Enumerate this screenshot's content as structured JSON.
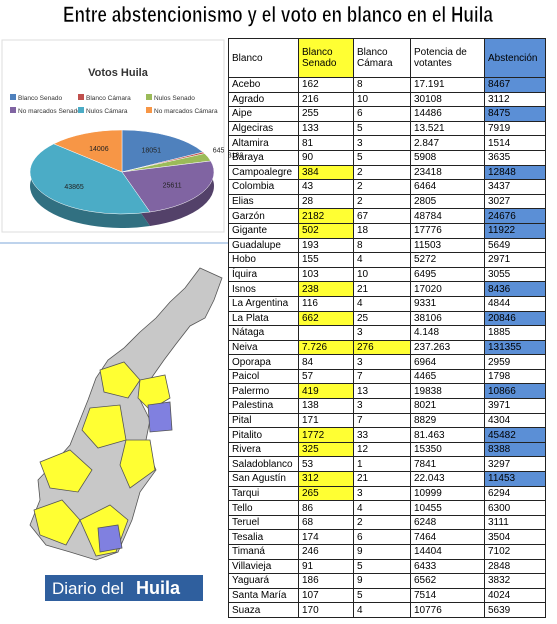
{
  "title": "Entre abstencionismo y el voto en blanco en el Huila",
  "chart_data": {
    "type": "pie",
    "title": "Votos Huila",
    "series": [
      {
        "name": "Blanco Senado",
        "color": "#4f81bd",
        "values": [
          18051
        ]
      },
      {
        "name": "Blanco Cámara",
        "color": "#c0504d",
        "values": [
          645
        ]
      },
      {
        "name": "Nulos Senado",
        "color": "#9bbb59",
        "values": [
          3182
        ]
      },
      {
        "name": "No marcados Senado",
        "color": "#8064a2",
        "values": [
          25611
        ]
      },
      {
        "name": "Nulos Cámara",
        "color": "#4bacc6",
        "values": [
          43865
        ]
      },
      {
        "name": "No marcados Cámara",
        "color": "#f79646",
        "values": [
          14006
        ]
      }
    ]
  },
  "table": {
    "header": [
      "Blanco",
      "Blanco Senado",
      "Blanco Cámara",
      "Potencia de votantes",
      "Abstención"
    ],
    "highlight_colors": {
      "1": "#ffff33",
      "2": "#ffff33",
      "4": "#5b8fd6"
    },
    "header_highlight": [
      1,
      4
    ],
    "rows": [
      {
        "cells": [
          "Acebo",
          "162",
          "8",
          "17.191",
          "8467"
        ],
        "highlight": [
          4
        ]
      },
      {
        "cells": [
          "Agrado",
          "216",
          "10",
          "30108",
          "3112"
        ],
        "highlight": []
      },
      {
        "cells": [
          "Aipe",
          "255",
          "6",
          "14486",
          "8475"
        ],
        "highlight": [
          4
        ]
      },
      {
        "cells": [
          "Algeciras",
          "133",
          "5",
          "13.521",
          "7919"
        ],
        "highlight": []
      },
      {
        "cells": [
          "Altamira",
          "81",
          "3",
          "2.847",
          "1514"
        ],
        "highlight": []
      },
      {
        "cells": [
          "Baraya",
          "90",
          "5",
          "5908",
          "3635"
        ],
        "highlight": []
      },
      {
        "cells": [
          "Campoalegre",
          "384",
          "2",
          "23418",
          "12848"
        ],
        "highlight": [
          1,
          4
        ]
      },
      {
        "cells": [
          "Colombia",
          "43",
          "2",
          "6464",
          "3437"
        ],
        "highlight": []
      },
      {
        "cells": [
          "Elias",
          "28",
          "2",
          "2805",
          "3027"
        ],
        "highlight": []
      },
      {
        "cells": [
          "Garzón",
          "2182",
          "67",
          "48784",
          "24676"
        ],
        "highlight": [
          1,
          4
        ]
      },
      {
        "cells": [
          "Gigante",
          "502",
          "18",
          "17776",
          "11922"
        ],
        "highlight": [
          1,
          4
        ]
      },
      {
        "cells": [
          "Guadalupe",
          "193",
          "8",
          "11503",
          "5649"
        ],
        "highlight": []
      },
      {
        "cells": [
          "Hobo",
          "155",
          "4",
          "5272",
          "2971"
        ],
        "highlight": []
      },
      {
        "cells": [
          "Íquira",
          "103",
          "10",
          "6495",
          "3055"
        ],
        "highlight": []
      },
      {
        "cells": [
          "Isnos",
          "238",
          "21",
          "17020",
          "8436"
        ],
        "highlight": [
          1,
          4
        ]
      },
      {
        "cells": [
          "La Argentina",
          "116",
          "4",
          "9331",
          "4844"
        ],
        "highlight": []
      },
      {
        "cells": [
          "La Plata",
          "662",
          "25",
          "38106",
          "20846"
        ],
        "highlight": [
          1,
          4
        ]
      },
      {
        "cells": [
          "Nátaga",
          null,
          "3",
          "4.148",
          "1885"
        ],
        "highlight": []
      },
      {
        "cells": [
          "Neiva",
          "7.726",
          "276",
          "237.263",
          "131355"
        ],
        "highlight": [
          1,
          2,
          4
        ]
      },
      {
        "cells": [
          "Oporapa",
          "84",
          "3",
          "6964",
          "2959"
        ],
        "highlight": []
      },
      {
        "cells": [
          "Paicol",
          "57",
          "7",
          "4465",
          "1798"
        ],
        "highlight": []
      },
      {
        "cells": [
          "Palermo",
          "419",
          "13",
          "19838",
          "10866"
        ],
        "highlight": [
          1,
          4
        ]
      },
      {
        "cells": [
          "Palestina",
          "138",
          "3",
          "8021",
          "3971"
        ],
        "highlight": []
      },
      {
        "cells": [
          "Pital",
          "171",
          "7",
          "8829",
          "4304"
        ],
        "highlight": []
      },
      {
        "cells": [
          "Pitalito",
          "1772",
          "33",
          "81.463",
          "45482"
        ],
        "highlight": [
          1,
          4
        ]
      },
      {
        "cells": [
          "Rivera",
          "325",
          "12",
          "15350",
          "8388"
        ],
        "highlight": [
          1,
          4
        ]
      },
      {
        "cells": [
          "Saladoblanco",
          "53",
          "1",
          "7841",
          "3297"
        ],
        "highlight": []
      },
      {
        "cells": [
          "San Agustín",
          "312",
          "21",
          "22.043",
          "11453"
        ],
        "highlight": [
          1,
          4
        ]
      },
      {
        "cells": [
          "Tarqui",
          "265",
          "3",
          "10999",
          "6294"
        ],
        "highlight": [
          1
        ]
      },
      {
        "cells": [
          "Tello",
          "86",
          "4",
          "10455",
          "6300"
        ],
        "highlight": []
      },
      {
        "cells": [
          "Teruel",
          "68",
          "2",
          "6248",
          "3111"
        ],
        "highlight": []
      },
      {
        "cells": [
          "Tesalia",
          "174",
          "6",
          "7464",
          "3504"
        ],
        "highlight": []
      },
      {
        "cells": [
          "Timaná",
          "246",
          "9",
          "14404",
          "7102"
        ],
        "highlight": []
      },
      {
        "cells": [
          "Villavieja",
          "91",
          "5",
          "6433",
          "2848"
        ],
        "highlight": []
      },
      {
        "cells": [
          "Yaguará",
          "186",
          "9",
          "6562",
          "3832"
        ],
        "highlight": []
      },
      {
        "cells": [
          "Santa María",
          "107",
          "5",
          "7514",
          "4024"
        ],
        "highlight": []
      },
      {
        "cells": [
          "Suaza",
          "170",
          "4",
          "10776",
          "5639"
        ],
        "highlight": []
      }
    ]
  },
  "logo": {
    "part1": "Diario del",
    "part2": "Huila"
  }
}
